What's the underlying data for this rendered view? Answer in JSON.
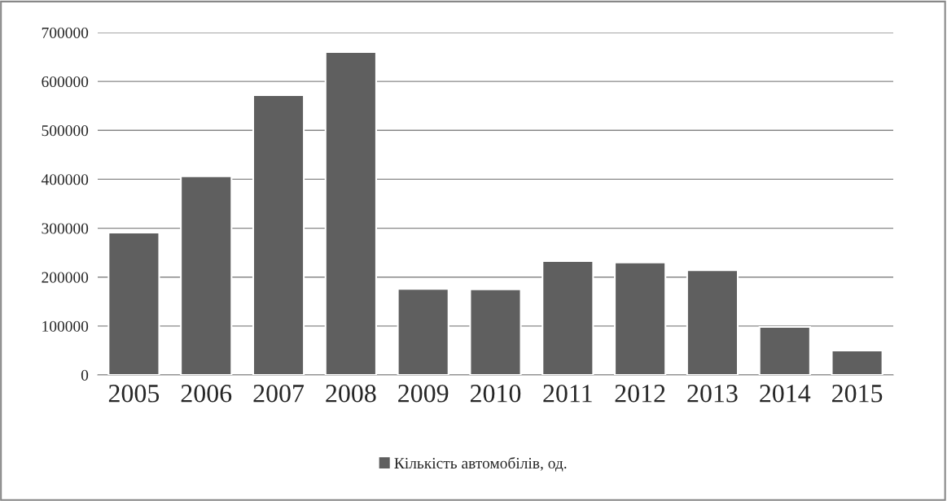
{
  "chart_data": {
    "type": "bar",
    "categories": [
      "2005",
      "2006",
      "2007",
      "2008",
      "2009",
      "2010",
      "2011",
      "2012",
      "2013",
      "2014",
      "2015"
    ],
    "series": [
      {
        "name": "Кількість автомобілів, од.",
        "color": "#5f5f5f",
        "values": [
          291000,
          406000,
          572000,
          660000,
          176000,
          175000,
          233000,
          230000,
          214000,
          98000,
          50000
        ]
      }
    ],
    "ylim": [
      0,
      700000
    ],
    "yticks": [
      0,
      100000,
      200000,
      300000,
      400000,
      500000,
      600000,
      700000
    ],
    "grid": "y",
    "legend": "bottom"
  }
}
